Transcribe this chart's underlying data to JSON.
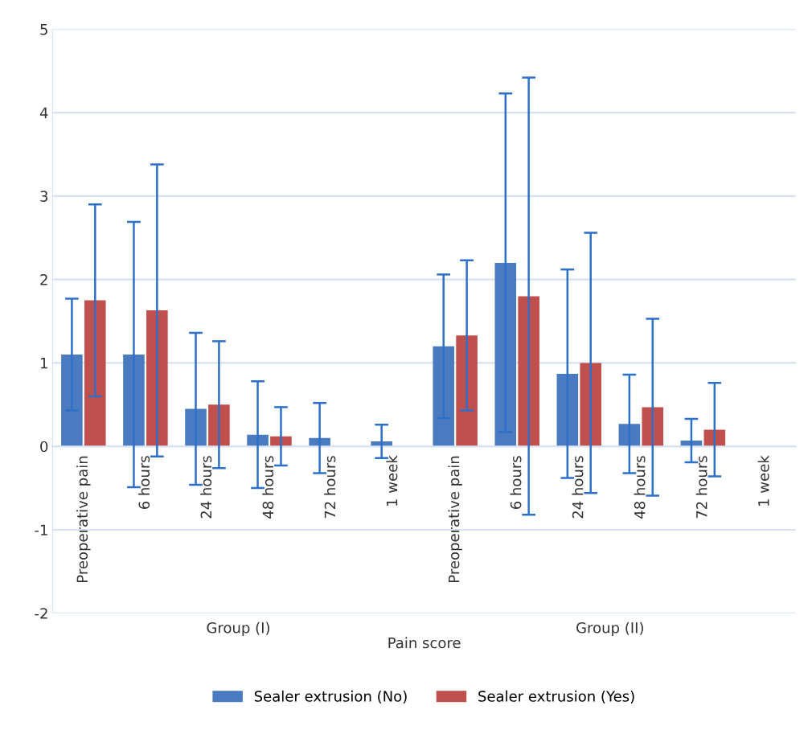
{
  "chart_data": {
    "type": "bar",
    "categories": [
      "Preoperative pain",
      "6 hours",
      "24 hours",
      "48 hours",
      "72 hours",
      "1 week",
      "Preoperative pain",
      "6 hours",
      "24 hours",
      "48 hours",
      "72 hours",
      "1 week"
    ],
    "series": [
      {
        "name": "Sealer extrusion (No)",
        "color": "#4a7bc0",
        "values": [
          1.1,
          1.1,
          0.45,
          0.14,
          0.1,
          0.06,
          1.2,
          2.2,
          0.87,
          0.27,
          0.07,
          0
        ],
        "errors": [
          0.67,
          1.59,
          0.91,
          0.64,
          0.42,
          0.2,
          0.86,
          2.03,
          1.25,
          0.59,
          0.26,
          null
        ]
      },
      {
        "name": "Sealer extrusion (Yes)",
        "color": "#c0504d",
        "values": [
          1.75,
          1.63,
          0.5,
          0.12,
          0,
          0,
          1.33,
          1.8,
          1.0,
          0.47,
          0.2,
          0
        ],
        "errors": [
          1.15,
          1.75,
          0.76,
          0.35,
          null,
          null,
          0.9,
          2.62,
          1.56,
          1.06,
          0.56,
          null
        ]
      }
    ],
    "xlabel": "Pain score",
    "annotations": [
      "Group (I)",
      "Group (II)"
    ],
    "ylim": [
      -2,
      5
    ],
    "yticks": [
      -2,
      -1,
      0,
      1,
      2,
      3,
      4,
      5
    ],
    "grid": "y",
    "legend": "bottom"
  }
}
